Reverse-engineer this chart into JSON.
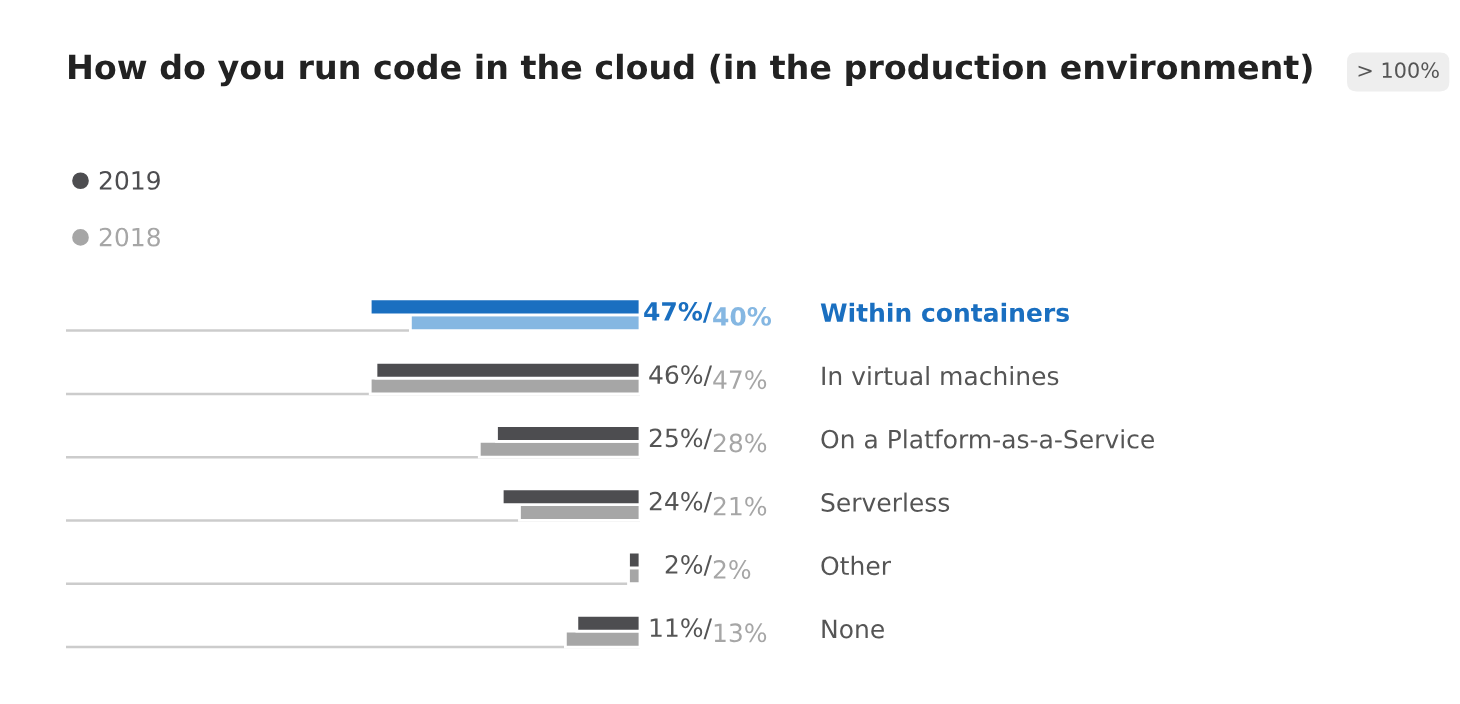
{
  "chart_data": {
    "type": "bar",
    "orientation": "horizontal",
    "title": "How do you run code in the cloud (in the production environment)",
    "annotations": [
      "> 100%"
    ],
    "categories": [
      "Within containers",
      "In virtual machines",
      "On a Platform-as-a-Service",
      "Serverless",
      "Other",
      "None"
    ],
    "series": [
      {
        "name": "2019",
        "color": "#4d4d50",
        "colors": [
          "#1a6fc0",
          "#4d4d50",
          "#4d4d50",
          "#4d4d50",
          "#4d4d50",
          "#4d4d50"
        ],
        "values": [
          47,
          46,
          25,
          24,
          2,
          11
        ],
        "value_labels": [
          "47%/",
          "46%/",
          "25%/",
          "24%/",
          "2%/",
          "11%/"
        ]
      },
      {
        "name": "2018",
        "color": "#a6a6a6",
        "colors": [
          "#85b7e2",
          "#a6a6a6",
          "#a6a6a6",
          "#a6a6a6",
          "#a6a6a6",
          "#a6a6a6"
        ],
        "values": [
          40,
          47,
          28,
          21,
          2,
          13
        ],
        "value_labels": [
          "40%",
          "47%",
          "28%",
          "21%",
          "2%",
          "13%"
        ]
      }
    ],
    "xlim": [
      100,
      0
    ],
    "grid": "y",
    "legend": "top left"
  }
}
